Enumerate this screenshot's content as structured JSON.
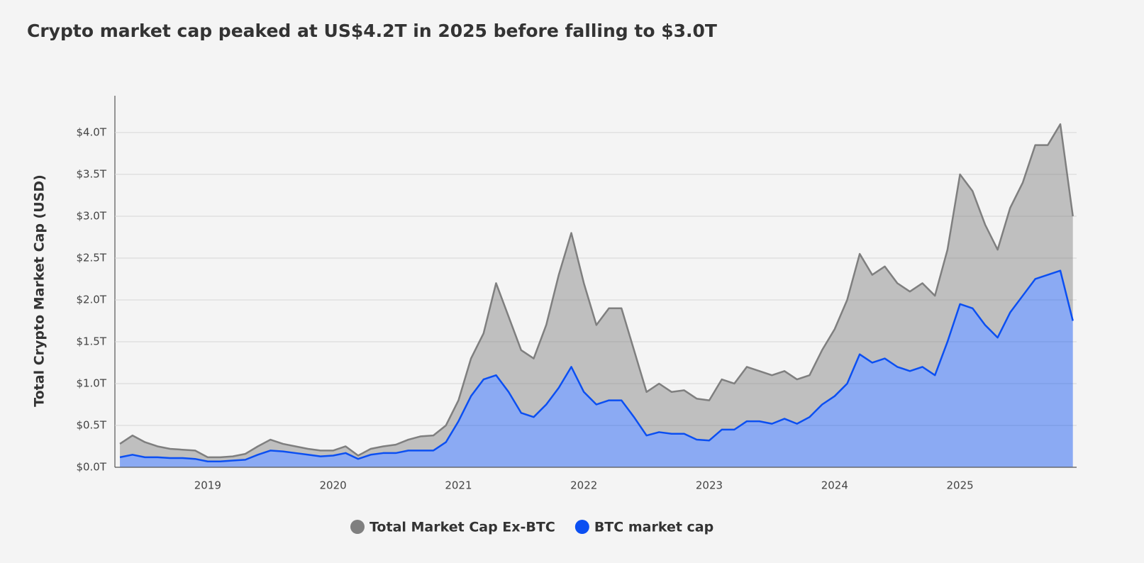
{
  "chart_data": {
    "type": "stacked-area",
    "title": "Crypto market cap peaked at US$4.2T in 2025 before falling to $3.0T",
    "y_label": "Total Crypto Market Cap (USD)",
    "x": [
      2018.3,
      2018.4,
      2018.5,
      2018.6,
      2018.7,
      2018.8,
      2018.9,
      2019.0,
      2019.1,
      2019.2,
      2019.3,
      2019.4,
      2019.5,
      2019.6,
      2019.7,
      2019.8,
      2019.9,
      2020.0,
      2020.1,
      2020.2,
      2020.3,
      2020.4,
      2020.5,
      2020.6,
      2020.7,
      2020.8,
      2020.9,
      2021.0,
      2021.1,
      2021.2,
      2021.3,
      2021.4,
      2021.5,
      2021.6,
      2021.7,
      2021.8,
      2021.9,
      2022.0,
      2022.1,
      2022.2,
      2022.3,
      2022.4,
      2022.5,
      2022.6,
      2022.7,
      2022.8,
      2022.9,
      2023.0,
      2023.1,
      2023.2,
      2023.3,
      2023.4,
      2023.5,
      2023.6,
      2023.7,
      2023.8,
      2023.9,
      2024.0,
      2024.1,
      2024.2,
      2024.3,
      2024.4,
      2024.5,
      2024.6,
      2024.7,
      2024.8,
      2024.9,
      2025.0,
      2025.1,
      2025.2,
      2025.3,
      2025.4,
      2025.5,
      2025.6,
      2025.7,
      2025.8,
      2025.9
    ],
    "series": [
      {
        "name": "Total Market Cap Ex-BTC",
        "color": "#7f7f7f",
        "values": [
          0.16,
          0.23,
          0.18,
          0.13,
          0.11,
          0.1,
          0.1,
          0.05,
          0.05,
          0.05,
          0.07,
          0.1,
          0.13,
          0.09,
          0.08,
          0.07,
          0.07,
          0.06,
          0.08,
          0.04,
          0.07,
          0.08,
          0.1,
          0.13,
          0.17,
          0.18,
          0.2,
          0.25,
          0.45,
          0.55,
          1.1,
          0.9,
          0.75,
          0.7,
          0.95,
          1.35,
          1.6,
          1.3,
          0.95,
          1.1,
          1.1,
          0.8,
          0.52,
          0.58,
          0.5,
          0.52,
          0.49,
          0.48,
          0.6,
          0.55,
          0.65,
          0.6,
          0.58,
          0.57,
          0.53,
          0.5,
          0.65,
          0.8,
          1.0,
          1.2,
          1.05,
          1.1,
          1.0,
          0.95,
          1.0,
          0.95,
          1.1,
          1.55,
          1.4,
          1.2,
          1.05,
          1.25,
          1.35,
          1.6,
          1.55,
          1.75,
          1.25
        ]
      },
      {
        "name": "BTC market cap",
        "color": "#0b4ff2",
        "values": [
          0.12,
          0.15,
          0.12,
          0.12,
          0.11,
          0.11,
          0.1,
          0.07,
          0.07,
          0.08,
          0.09,
          0.15,
          0.2,
          0.19,
          0.17,
          0.15,
          0.13,
          0.14,
          0.17,
          0.1,
          0.15,
          0.17,
          0.17,
          0.2,
          0.2,
          0.2,
          0.3,
          0.55,
          0.85,
          1.05,
          1.1,
          0.9,
          0.65,
          0.6,
          0.75,
          0.95,
          1.2,
          0.9,
          0.75,
          0.8,
          0.8,
          0.6,
          0.38,
          0.42,
          0.4,
          0.4,
          0.33,
          0.32,
          0.45,
          0.45,
          0.55,
          0.55,
          0.52,
          0.58,
          0.52,
          0.6,
          0.75,
          0.85,
          1.0,
          1.35,
          1.25,
          1.3,
          1.2,
          1.15,
          1.2,
          1.1,
          1.5,
          1.95,
          1.9,
          1.7,
          1.55,
          1.85,
          2.05,
          2.25,
          2.3,
          2.35,
          1.75
        ]
      }
    ],
    "xlim": [
      2018.26,
      2025.93
    ],
    "xticks": [
      2019,
      2020,
      2021,
      2022,
      2023,
      2024,
      2025
    ],
    "ylim": [
      0,
      4.44
    ],
    "yticks": [
      {
        "value": 0,
        "label": "$0.0T"
      },
      {
        "value": 0.5,
        "label": "$0.5T"
      },
      {
        "value": 1,
        "label": "$1.0T"
      },
      {
        "value": 1.5,
        "label": "$1.5T"
      },
      {
        "value": 2,
        "label": "$2.0T"
      },
      {
        "value": 2.5,
        "label": "$2.5T"
      },
      {
        "value": 3,
        "label": "$3.0T"
      },
      {
        "value": 3.5,
        "label": "$3.5T"
      },
      {
        "value": 4,
        "label": "$4.0T"
      }
    ],
    "grid": true
  }
}
